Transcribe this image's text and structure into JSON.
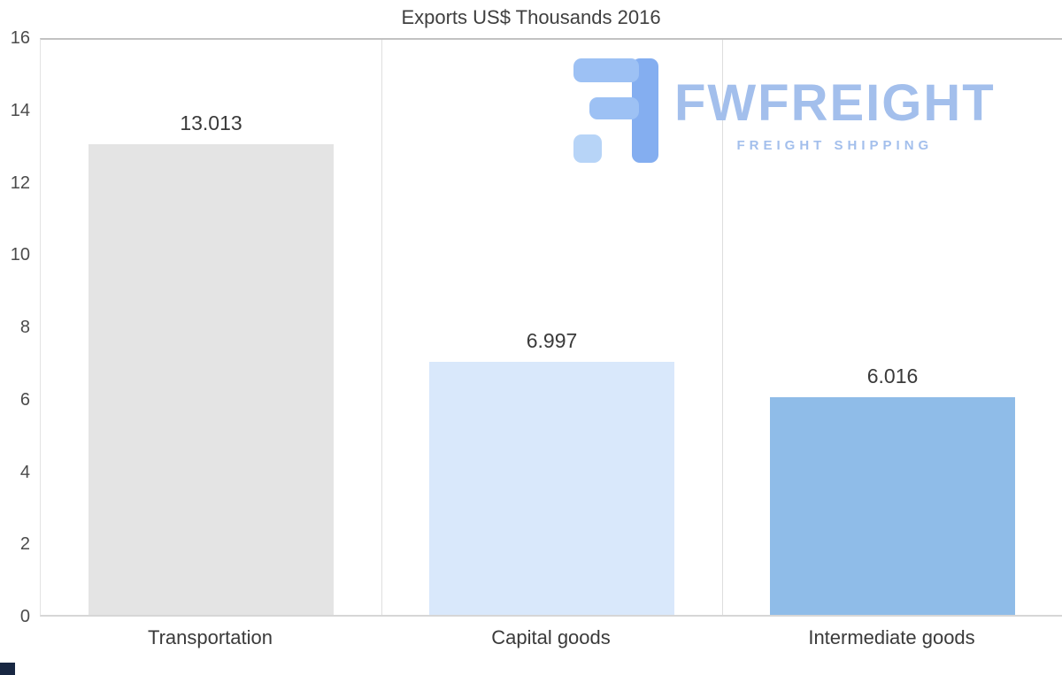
{
  "title": "Exports US$ Thousands 2016",
  "watermark": {
    "brand": "FWFREIGHT",
    "tagline": "FREIGHT SHIPPING",
    "icon": "fwfreight-logo-icon",
    "brand_color": "#a3bfec",
    "icon_color_light": "#9dc1f4",
    "icon_color_dark": "#84aef0"
  },
  "chart_data": {
    "type": "bar",
    "title": "Exports US$ Thousands 2016",
    "categories": [
      "Transportation",
      "Capital goods",
      "Intermediate goods"
    ],
    "values": [
      13.013,
      6.997,
      6.016
    ],
    "value_labels": [
      "13.013",
      "6.997",
      "6.016"
    ],
    "bar_colors": [
      "#e4e4e4",
      "#d9e8fb",
      "#8fbce8"
    ],
    "xlabel": "",
    "ylabel": "",
    "ylim": [
      0,
      16
    ],
    "yticks": [
      0,
      2,
      4,
      6,
      8,
      10,
      12,
      14,
      16
    ],
    "grid": "vertical category separators, top and bottom plot borders only",
    "legend": "none"
  }
}
